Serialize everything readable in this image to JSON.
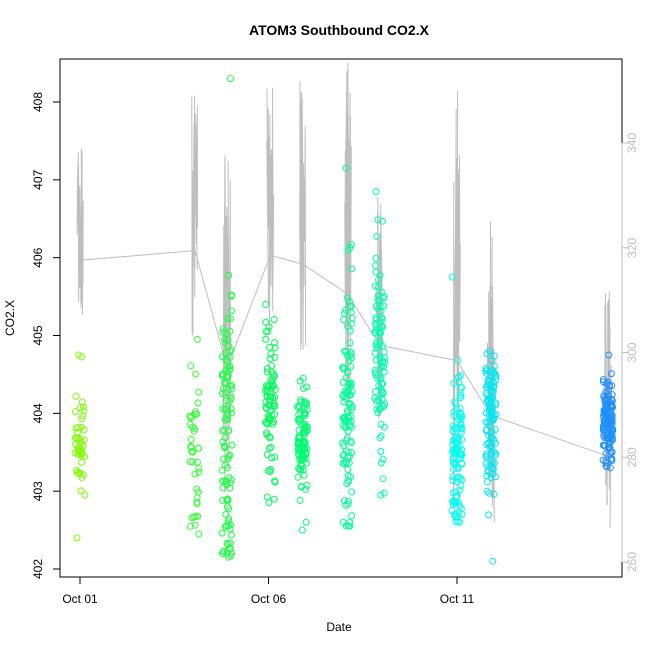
{
  "chart_data": {
    "type": "scatter",
    "title": "ATOM3 Southbound CO2.X",
    "xlabel": "Date",
    "ylabel": "CO2.X",
    "x_ticks": [
      "Oct 01",
      "Oct 06",
      "Oct 11"
    ],
    "x_tick_days": [
      1,
      6,
      11
    ],
    "xlim_days": [
      0.7,
      16.4
    ],
    "ylim": [
      402,
      408.5
    ],
    "y_ticks": [
      402,
      403,
      404,
      405,
      406,
      407,
      408
    ],
    "ylim_right": [
      258,
      360
    ],
    "y_ticks_right": [
      260,
      280,
      300,
      320,
      340
    ],
    "grid": false,
    "legend": "none",
    "colors": {
      "points_start": "#7fff00",
      "points_mid": "#00ff55",
      "points_late": "#00ffee",
      "points_end": "#1e90ff",
      "secondary_line": "#bebebe"
    },
    "series": [
      {
        "axis": "left",
        "style": "points",
        "clusters": [
          {
            "day": 1.0,
            "min": 402.4,
            "max": 404.75,
            "center": 403.6,
            "count": 45
          },
          {
            "day": 4.05,
            "min": 402.45,
            "max": 404.95,
            "center": 403.6,
            "count": 40
          },
          {
            "day": 4.9,
            "min": 402.15,
            "max": 408.3,
            "center": 403.6,
            "count": 110
          },
          {
            "day": 6.05,
            "min": 402.85,
            "max": 405.4,
            "center": 404.1,
            "count": 80
          },
          {
            "day": 6.9,
            "min": 402.5,
            "max": 404.45,
            "center": 403.6,
            "count": 95
          },
          {
            "day": 8.1,
            "min": 402.55,
            "max": 407.15,
            "center": 404.1,
            "count": 110
          },
          {
            "day": 8.95,
            "min": 402.95,
            "max": 406.85,
            "center": 404.6,
            "count": 95
          },
          {
            "day": 11.0,
            "min": 402.6,
            "max": 405.75,
            "center": 403.5,
            "count": 110
          },
          {
            "day": 11.9,
            "min": 402.1,
            "max": 404.8,
            "center": 403.9,
            "count": 120
          },
          {
            "day": 15.0,
            "min": 403.3,
            "max": 404.75,
            "center": 403.9,
            "count": 130
          }
        ]
      },
      {
        "axis": "right",
        "style": "line",
        "segments": [
          {
            "day": 1.0,
            "min": 305,
            "max": 341
          },
          {
            "day": 4.05,
            "min": 303,
            "max": 350
          },
          {
            "day": 4.9,
            "min": 273,
            "max": 342
          },
          {
            "day": 6.05,
            "min": 300,
            "max": 353
          },
          {
            "day": 6.9,
            "min": 298,
            "max": 352
          },
          {
            "day": 8.1,
            "min": 287,
            "max": 356
          },
          {
            "day": 8.95,
            "min": 286,
            "max": 330
          },
          {
            "day": 11.0,
            "min": 268,
            "max": 355
          },
          {
            "day": 11.9,
            "min": 267,
            "max": 327
          },
          {
            "day": 15.0,
            "min": 262,
            "max": 314
          }
        ]
      }
    ]
  }
}
